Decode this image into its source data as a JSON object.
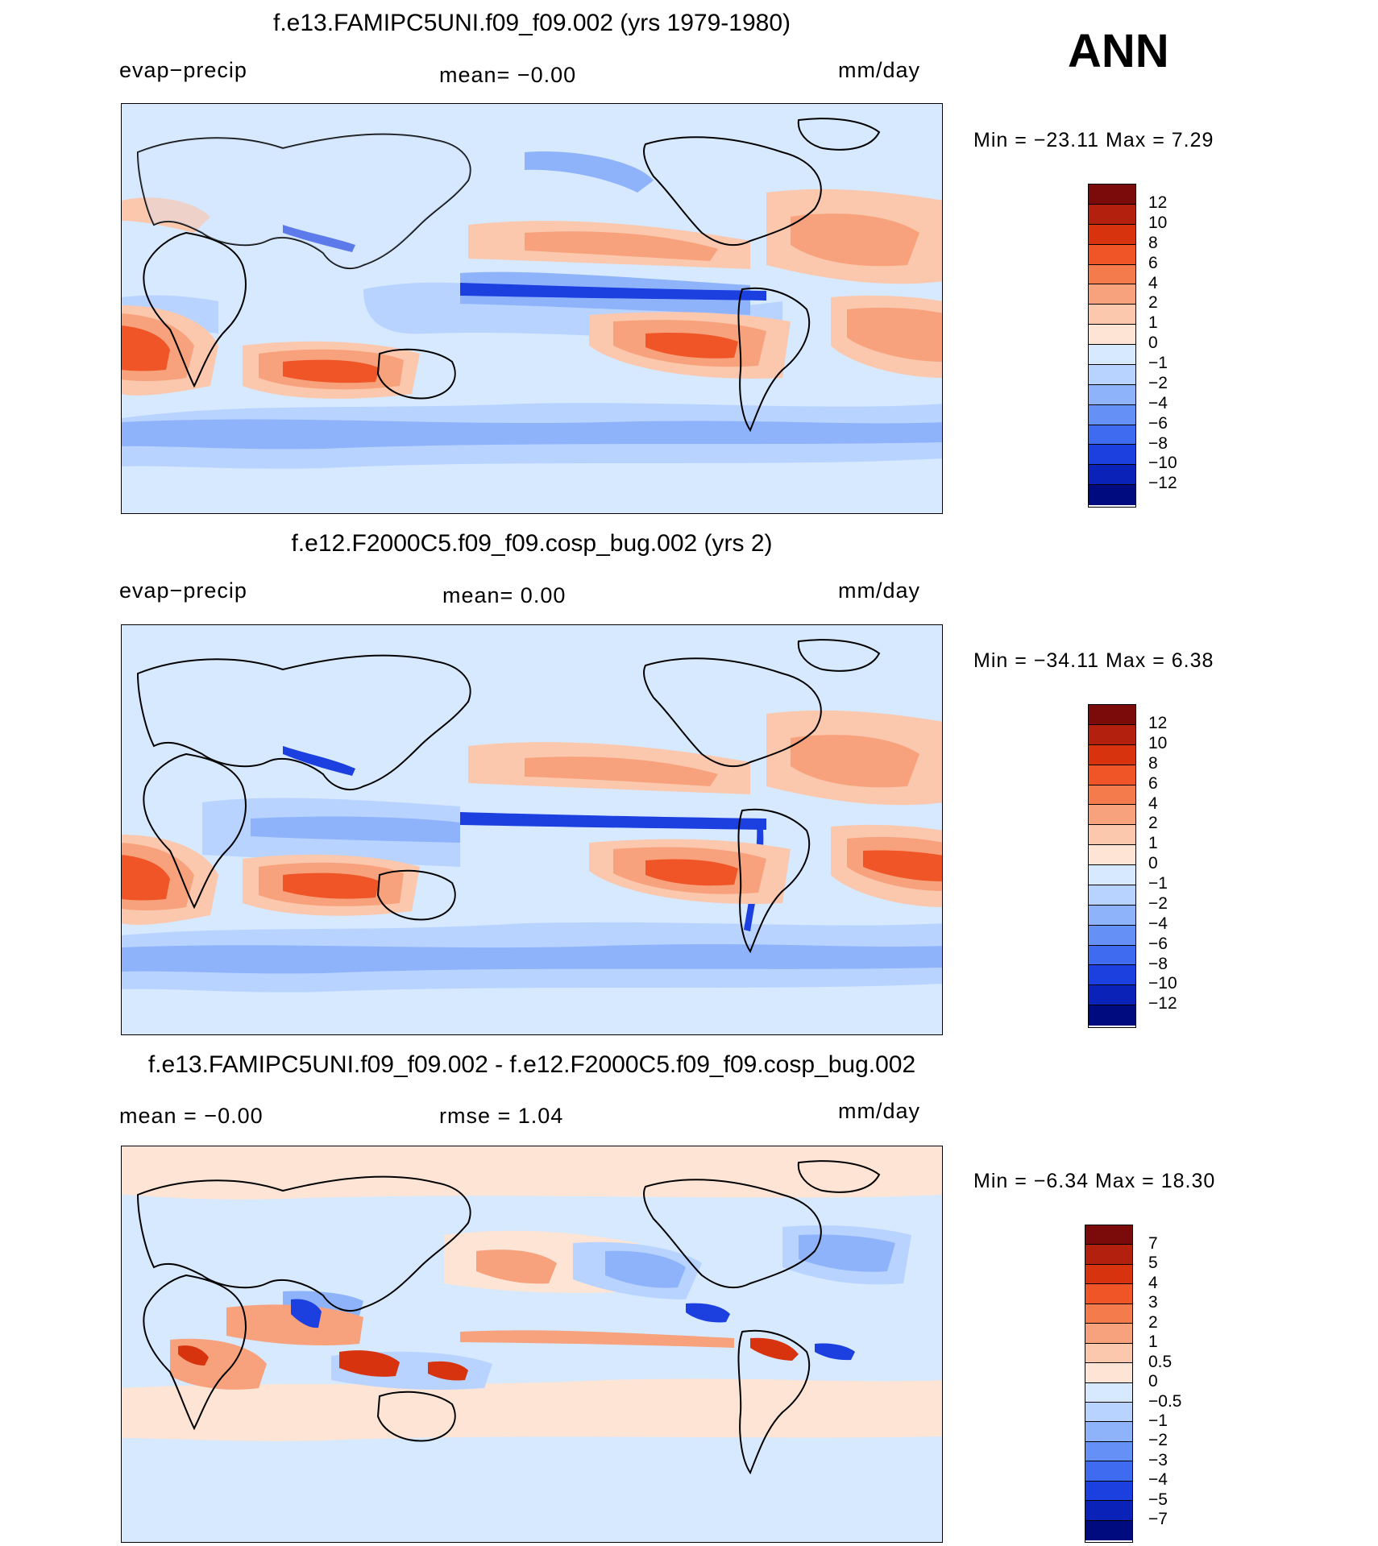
{
  "season": "ANN",
  "panels": [
    {
      "title": "f.e13.FAMIPC5UNI.f09_f09.002 (yrs 1979-1980)",
      "left_label": "evap−precip",
      "center_label": "mean=   −0.00",
      "units": "mm/day",
      "min_label": "Min  =  −23.11  Max  =       7.29",
      "levels": [
        "12",
        "10",
        "8",
        "6",
        "4",
        "2",
        "1",
        "0",
        "−1",
        "−2",
        "−4",
        "−6",
        "−8",
        "−10",
        "−12"
      ],
      "colors": [
        "#7b0a0a",
        "#b3200d",
        "#d7330f",
        "#ef5526",
        "#f47c4c",
        "#f7a27c",
        "#fbc7ad",
        "#fde4d4",
        "#d6e9ff",
        "#b8d3ff",
        "#8fb3fb",
        "#6590f6",
        "#3f6bf1",
        "#1c3fe0",
        "#0a22b8",
        "#000b7f"
      ]
    },
    {
      "title": "f.e12.F2000C5.f09_f09.cosp_bug.002 (yrs 2)",
      "left_label": "evap−precip",
      "center_label": "mean=     0.00",
      "units": "mm/day",
      "min_label": "Min  =  −34.11  Max  =       6.38",
      "levels": [
        "12",
        "10",
        "8",
        "6",
        "4",
        "2",
        "1",
        "0",
        "−1",
        "−2",
        "−4",
        "−6",
        "−8",
        "−10",
        "−12"
      ],
      "colors": [
        "#7b0a0a",
        "#b3200d",
        "#d7330f",
        "#ef5526",
        "#f47c4c",
        "#f7a27c",
        "#fbc7ad",
        "#fde4d4",
        "#d6e9ff",
        "#b8d3ff",
        "#8fb3fb",
        "#6590f6",
        "#3f6bf1",
        "#1c3fe0",
        "#0a22b8",
        "#000b7f"
      ]
    },
    {
      "title": "f.e13.FAMIPC5UNI.f09_f09.002 - f.e12.F2000C5.f09_f09.cosp_bug.002",
      "left_label": "mean  =    −0.00",
      "center_label": "rmse  =     1.04",
      "units": "mm/day",
      "min_label": "Min  =     −6.34  Max  =    18.30",
      "levels": [
        "7",
        "5",
        "4",
        "3",
        "2",
        "1",
        "0.5",
        "0",
        "−0.5",
        "−1",
        "−2",
        "−3",
        "−4",
        "−5",
        "−7"
      ],
      "colors": [
        "#7b0a0a",
        "#b3200d",
        "#d7330f",
        "#ef5526",
        "#f47c4c",
        "#f7a27c",
        "#fbc7ad",
        "#fde4d4",
        "#d6e9ff",
        "#b8d3ff",
        "#8fb3fb",
        "#6590f6",
        "#3f6bf1",
        "#1c3fe0",
        "#0a22b8",
        "#000b7f"
      ]
    }
  ]
}
